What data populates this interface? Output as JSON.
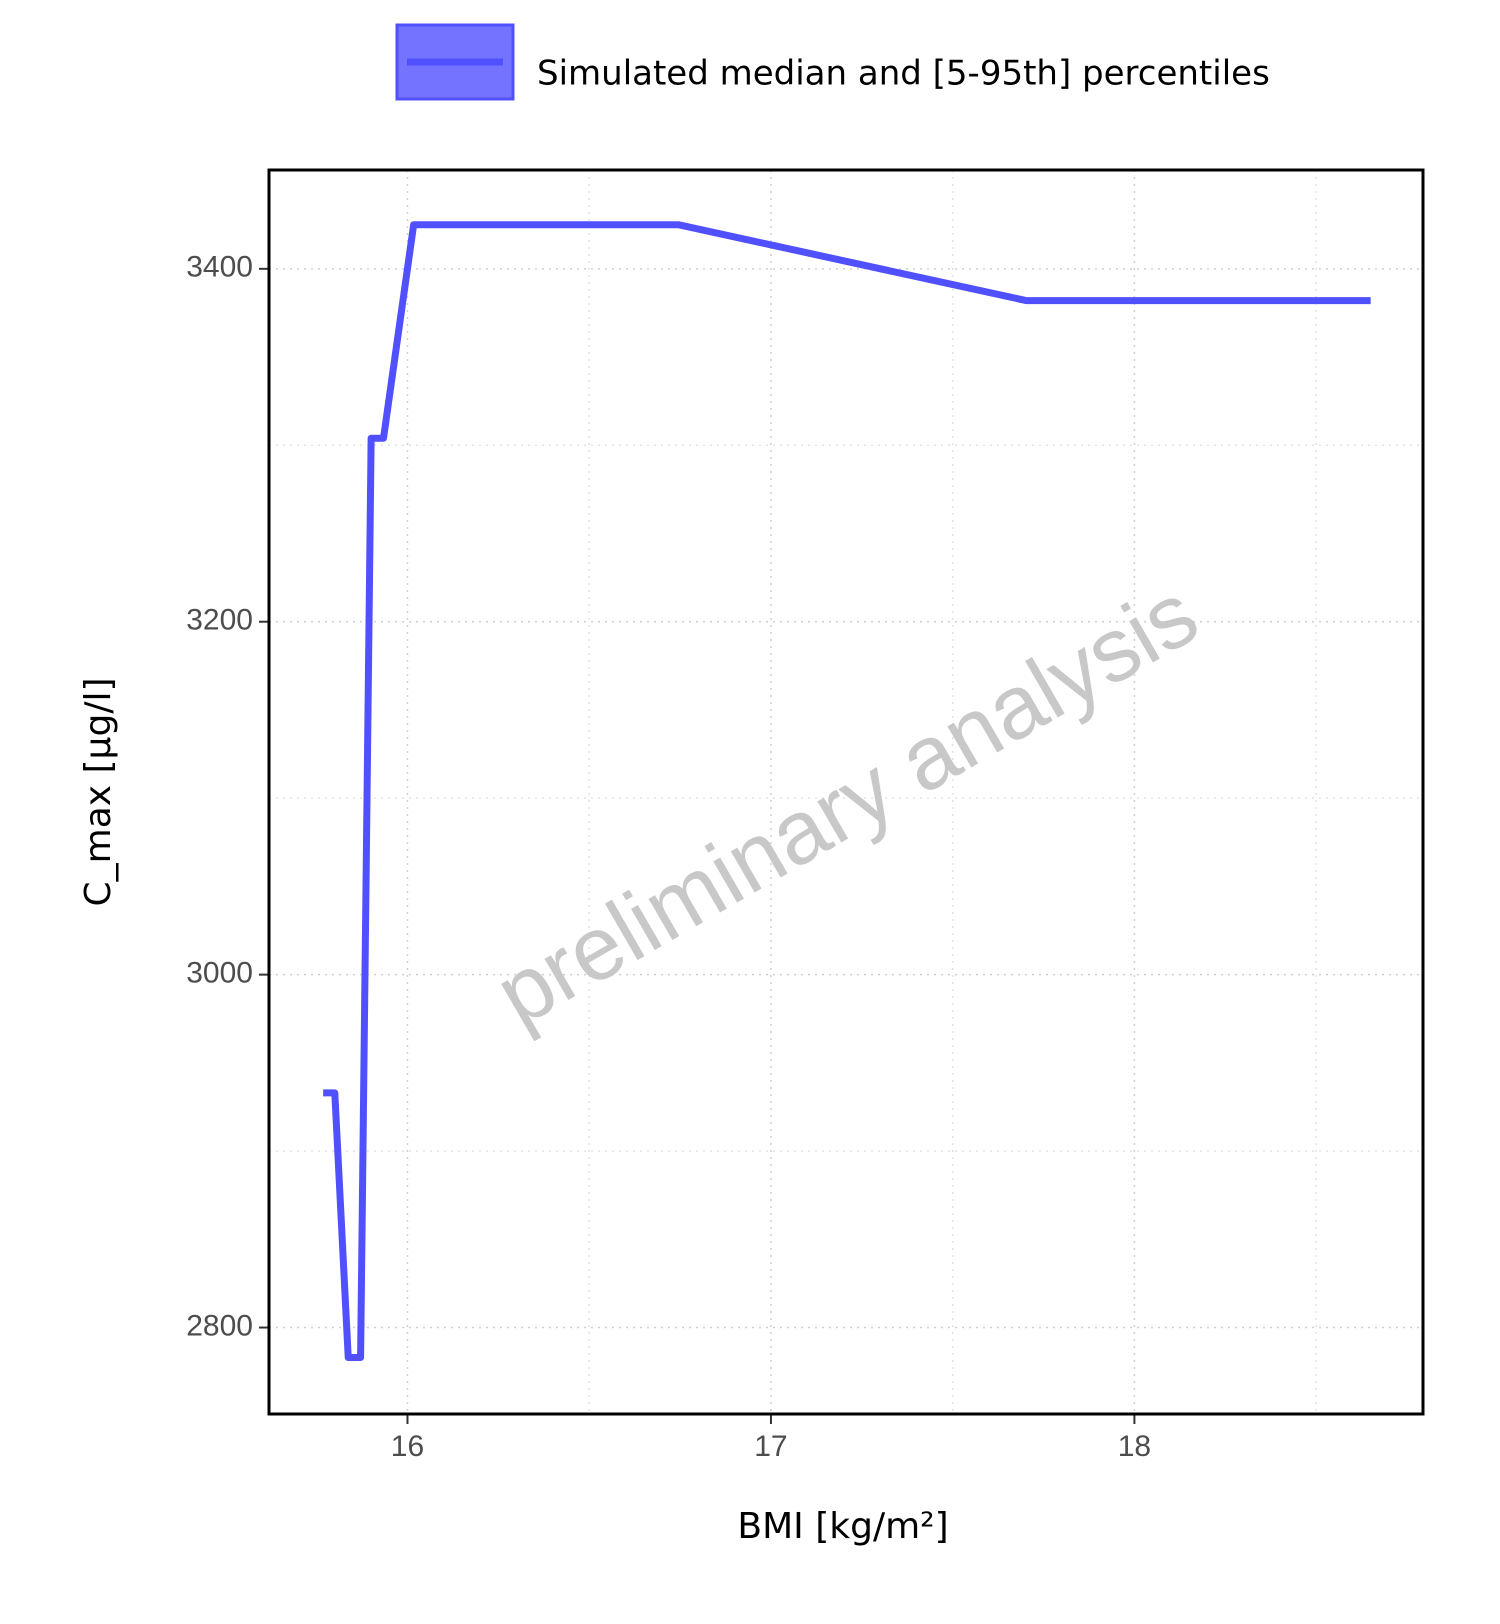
{
  "chart_data": {
    "type": "line",
    "x_label": "BMI [kg/m²]",
    "y_label": "C_max [µg/l]",
    "watermark": "preliminary analysis",
    "x": [
      15.768,
      15.8,
      15.837,
      15.871,
      15.9,
      15.934,
      16.017,
      16.745,
      17.702,
      18.65
    ],
    "series": [
      {
        "name": "Simulated median and [5-95th] percentiles",
        "color": "#5050ff",
        "values": [
          2933,
          2933,
          2783,
          2783,
          3304,
          3304,
          3425,
          3425,
          3382,
          3382
        ]
      }
    ],
    "xlim": [
      15.619,
      18.794
    ],
    "ylim": [
      2751,
      3456
    ],
    "xticks": [
      16,
      17,
      18
    ],
    "yticks": [
      2800,
      3000,
      3200,
      3400
    ],
    "x_minor_ticks": [
      16.5,
      17.5,
      18.5
    ],
    "y_minor_ticks": [
      2900,
      3100,
      3300
    ],
    "grid": true,
    "legend": "top"
  }
}
